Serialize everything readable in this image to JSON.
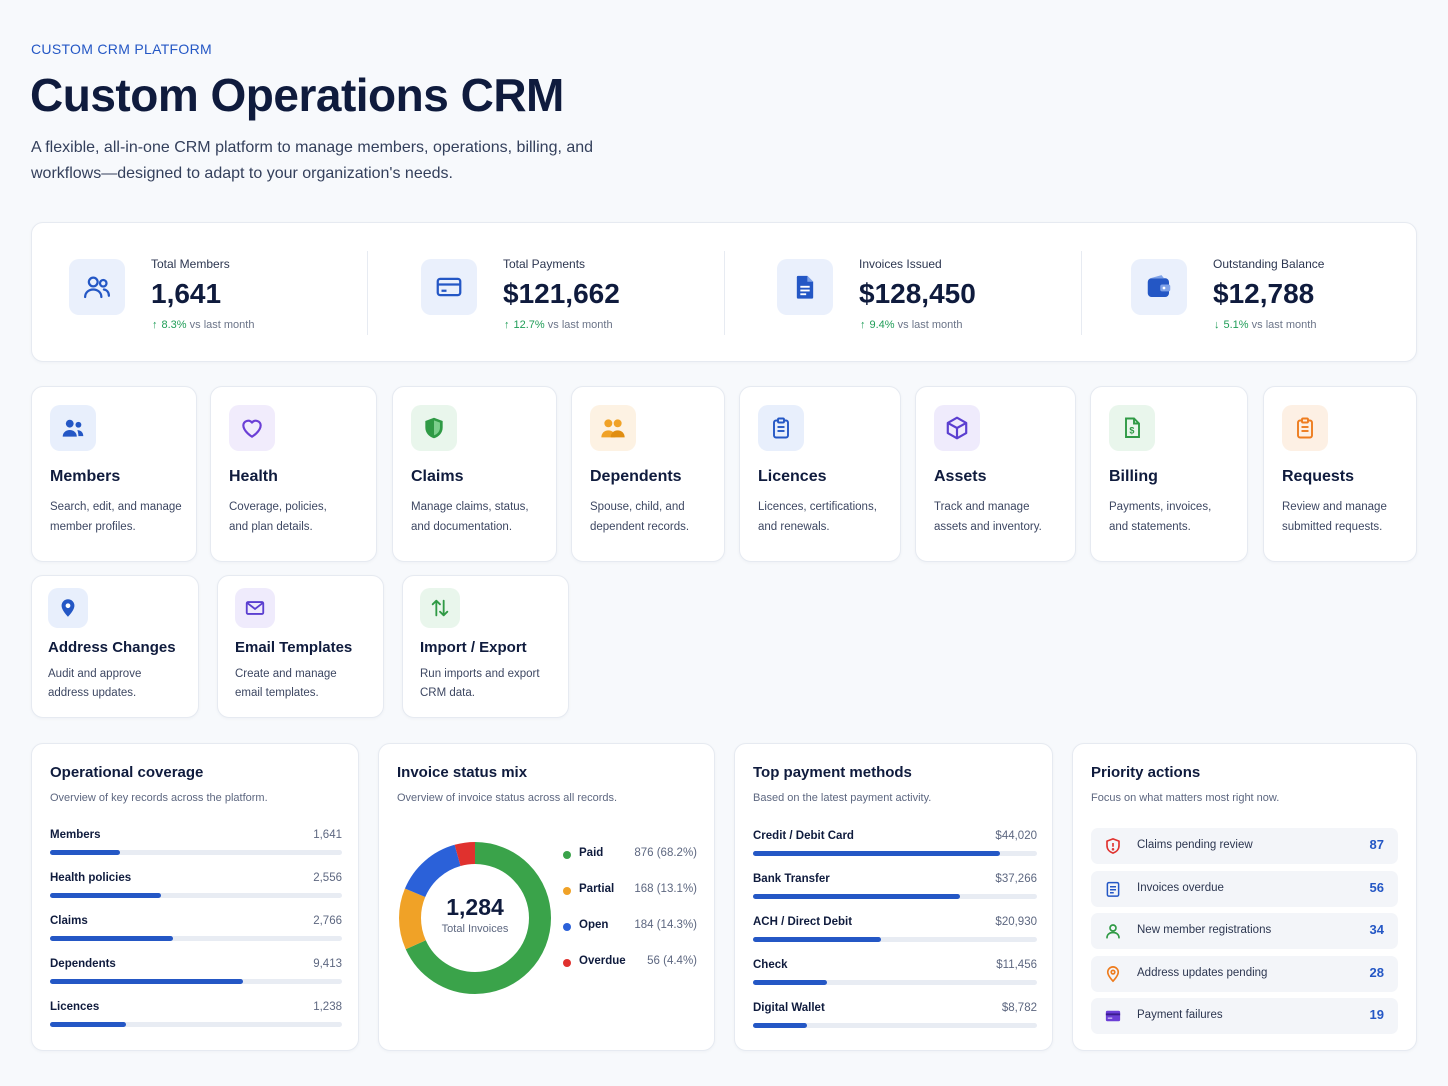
{
  "header": {
    "eyebrow": "CUSTOM CRM PLATFORM",
    "title": "Custom Operations CRM",
    "subtitle": "A flexible, all-in-one CRM platform to manage members, operations, billing, and workflows—designed to adapt to your organization's needs."
  },
  "kpis": [
    {
      "label": "Total Members",
      "value": "1,641",
      "delta": "8.3%",
      "delta_suffix": "vs last month",
      "direction": "up",
      "icon": "users-icon"
    },
    {
      "label": "Total Payments",
      "value": "$121,662",
      "delta": "12.7%",
      "delta_suffix": "vs last month",
      "direction": "up",
      "icon": "credit-card-icon"
    },
    {
      "label": "Invoices Issued",
      "value": "$128,450",
      "delta": "9.4%",
      "delta_suffix": "vs last month",
      "direction": "up",
      "icon": "document-icon"
    },
    {
      "label": "Outstanding Balance",
      "value": "$12,788",
      "delta": "5.1%",
      "delta_suffix": "vs last month",
      "direction": "down",
      "icon": "wallet-icon"
    }
  ],
  "modules_row1": [
    {
      "title": "Members",
      "desc1": "Search, edit, and manage",
      "desc2": "member profiles.",
      "icon": "users-icon"
    },
    {
      "title": "Health",
      "desc1": "Coverage, policies,",
      "desc2": "and plan details.",
      "icon": "heart-icon"
    },
    {
      "title": "Claims",
      "desc1": "Manage claims, status,",
      "desc2": "and documentation.",
      "icon": "shield-icon"
    },
    {
      "title": "Dependents",
      "desc1": "Spouse, child, and",
      "desc2": "dependent records.",
      "icon": "family-icon"
    },
    {
      "title": "Licences",
      "desc1": "Licences, certifications,",
      "desc2": "and renewals.",
      "icon": "clipboard-icon"
    },
    {
      "title": "Assets",
      "desc1": "Track and manage",
      "desc2": "assets and inventory.",
      "icon": "cube-icon"
    },
    {
      "title": "Billing",
      "desc1": "Payments, invoices,",
      "desc2": "and statements.",
      "icon": "billing-icon"
    },
    {
      "title": "Requests",
      "desc1": "Review and manage",
      "desc2": "submitted requests.",
      "icon": "request-clipboard-icon"
    }
  ],
  "modules_row2": [
    {
      "title": "Address Changes",
      "desc1": "Audit and approve",
      "desc2": "address updates.",
      "icon": "location-pin-icon"
    },
    {
      "title": "Email Templates",
      "desc1": "Create and manage",
      "desc2": "email templates.",
      "icon": "mail-icon"
    },
    {
      "title": "Import / Export",
      "desc1": "Run imports and export",
      "desc2": "CRM data.",
      "icon": "import-export-icon"
    }
  ],
  "coverage": {
    "title": "Operational coverage",
    "subtitle": "Overview of key records across the platform.",
    "rows": [
      {
        "label": "Members",
        "value": "1,641",
        "fill": 0.24
      },
      {
        "label": "Health policies",
        "value": "2,556",
        "fill": 0.38
      },
      {
        "label": "Claims",
        "value": "2,766",
        "fill": 0.42
      },
      {
        "label": "Dependents",
        "value": "9,413",
        "fill": 0.66
      },
      {
        "label": "Licences",
        "value": "1,238",
        "fill": 0.26
      }
    ]
  },
  "invoice_mix": {
    "title": "Invoice status mix",
    "subtitle": "Overview of invoice status across all records.",
    "center_value": "1,284",
    "center_label": "Total Invoices"
  },
  "chart_data": {
    "type": "pie",
    "title": "Invoice status mix",
    "categories": [
      "Paid",
      "Partial",
      "Open",
      "Overdue"
    ],
    "values": [
      876,
      168,
      184,
      56
    ],
    "labels": [
      "876 (68.2%)",
      "168 (13.1%)",
      "184 (14.3%)",
      "56 (4.4%)"
    ],
    "colors": [
      "#3aa34a",
      "#f0a227",
      "#2b61d9",
      "#e0312e"
    ],
    "legend": "right"
  },
  "payments": {
    "title": "Top payment methods",
    "subtitle": "Based on the latest payment activity.",
    "rows": [
      {
        "label": "Credit / Debit Card",
        "value": "$44,020",
        "fill": 0.87
      },
      {
        "label": "Bank Transfer",
        "value": "$37,266",
        "fill": 0.73
      },
      {
        "label": "ACH / Direct Debit",
        "value": "$20,930",
        "fill": 0.45
      },
      {
        "label": "Check",
        "value": "$11,456",
        "fill": 0.26
      },
      {
        "label": "Digital Wallet",
        "value": "$8,782",
        "fill": 0.19
      }
    ]
  },
  "priority": {
    "title": "Priority actions",
    "subtitle": "Focus on what matters most right now.",
    "rows": [
      {
        "label": "Claims pending review",
        "count": "87",
        "icon": "shield-alert-icon"
      },
      {
        "label": "Invoices overdue",
        "count": "56",
        "icon": "invoice-icon"
      },
      {
        "label": "New member registrations",
        "count": "34",
        "icon": "user-icon"
      },
      {
        "label": "Address updates pending",
        "count": "28",
        "icon": "location-pin-icon"
      },
      {
        "label": "Payment failures",
        "count": "19",
        "icon": "card-icon"
      }
    ]
  },
  "colors": {
    "accent": "#2457c5",
    "positive": "#1f9d57",
    "text": "#0f1b3d"
  }
}
